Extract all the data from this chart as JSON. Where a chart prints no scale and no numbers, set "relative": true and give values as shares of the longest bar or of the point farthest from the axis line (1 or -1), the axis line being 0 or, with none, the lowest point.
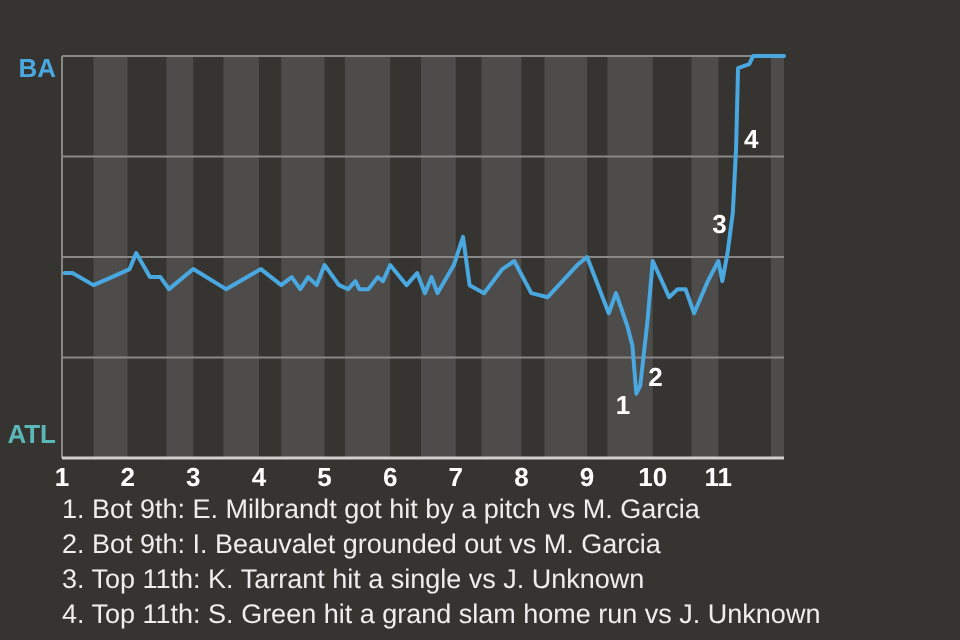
{
  "chart_data": {
    "type": "line",
    "relative": true,
    "xlim": [
      1,
      12
    ],
    "xticks": [
      1,
      2,
      3,
      4,
      5,
      6,
      7,
      8,
      9,
      10,
      11
    ],
    "grid": "y",
    "marker": "none",
    "line_style": "solid",
    "bands": [
      {
        "axis": "x",
        "from": 1.48,
        "to": 2,
        "color": "#4e4c4a"
      },
      {
        "axis": "x",
        "from": 2.59,
        "to": 3,
        "color": "#4e4c4a"
      },
      {
        "axis": "x",
        "from": 3.46,
        "to": 4,
        "color": "#4e4c4a"
      },
      {
        "axis": "x",
        "from": 4.34,
        "to": 5,
        "color": "#4e4c4a"
      },
      {
        "axis": "x",
        "from": 5.31,
        "to": 6,
        "color": "#4e4c4a"
      },
      {
        "axis": "x",
        "from": 6.47,
        "to": 7,
        "color": "#4e4c4a"
      },
      {
        "axis": "x",
        "from": 7.39,
        "to": 8,
        "color": "#4e4c4a"
      },
      {
        "axis": "x",
        "from": 8.35,
        "to": 9,
        "color": "#4e4c4a"
      },
      {
        "axis": "x",
        "from": 9.31,
        "to": 10,
        "color": "#4e4c4a"
      },
      {
        "axis": "x",
        "from": 10.59,
        "to": 11,
        "color": "#4e4c4a"
      },
      {
        "axis": "x",
        "from": 11.8,
        "to": 12,
        "color": "#4e4c4a"
      }
    ],
    "series": [
      {
        "color": "#4aa8e0",
        "x": [
          1.04,
          1.16,
          1.48,
          1.76,
          2.03,
          2.13,
          2.34,
          2.5,
          2.63,
          3.0,
          3.5,
          4.03,
          4.34,
          4.5,
          4.63,
          4.75,
          4.88,
          5.0,
          5.22,
          5.36,
          5.47,
          5.53,
          5.67,
          5.81,
          5.89,
          6.0,
          6.25,
          6.41,
          6.53,
          6.63,
          6.72,
          6.97,
          7.11,
          7.21,
          7.43,
          7.71,
          7.89,
          8.15,
          8.4,
          8.85,
          9.0,
          9.33,
          9.44,
          9.61,
          9.69,
          9.75,
          9.81,
          9.92,
          10.0,
          10.25,
          10.38,
          10.5,
          10.63,
          10.84,
          11.0,
          11.06,
          11.14,
          11.22,
          11.27,
          11.3,
          11.47,
          11.53,
          12.0
        ],
        "values": [
          0.46,
          0.46,
          0.43,
          0.45,
          0.47,
          0.51,
          0.45,
          0.45,
          0.42,
          0.47,
          0.42,
          0.47,
          0.43,
          0.45,
          0.42,
          0.45,
          0.43,
          0.48,
          0.43,
          0.42,
          0.44,
          0.42,
          0.42,
          0.45,
          0.44,
          0.48,
          0.43,
          0.46,
          0.41,
          0.45,
          0.41,
          0.48,
          0.55,
          0.43,
          0.41,
          0.47,
          0.49,
          0.41,
          0.4,
          0.48,
          0.5,
          0.36,
          0.41,
          0.33,
          0.28,
          0.16,
          0.18,
          0.34,
          0.49,
          0.4,
          0.42,
          0.42,
          0.36,
          0.44,
          0.49,
          0.44,
          0.51,
          0.61,
          0.77,
          0.97,
          0.98,
          1,
          1
        ]
      }
    ],
    "annotations": [
      "BA",
      "ATL",
      {
        "text": "1",
        "x": 9.75,
        "y": 0.16
      },
      {
        "text": "2",
        "x": 9.81,
        "y": 0.18
      },
      {
        "text": "3",
        "x": 11.22,
        "y": 0.61
      },
      {
        "text": "4",
        "x": 11.27,
        "y": 0.77
      },
      "1. Bot 9th: E. Milbrandt got hit by a pitch vs M. Garcia",
      "2. Bot 9th: I. Beauvalet grounded out vs M. Garcia",
      "3. Top 11th: K. Tarrant hit a single vs J. Unknown",
      "4. Top 11th: S. Green hit a grand slam home run vs J. Unknown"
    ]
  }
}
